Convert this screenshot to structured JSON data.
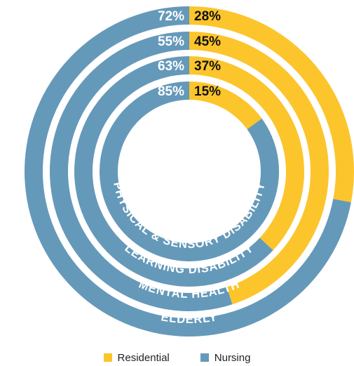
{
  "chart_data": {
    "type": "donut",
    "colors": {
      "residential": "#FCC52C",
      "nursing": "#6599BA"
    },
    "rings": [
      {
        "label": "ELDERLY",
        "residential": 28,
        "nursing": 72,
        "residential_label": "28%",
        "nursing_label": "72%"
      },
      {
        "label": "MENTAL HEALTH",
        "residential": 45,
        "nursing": 55,
        "residential_label": "45%",
        "nursing_label": "55%"
      },
      {
        "label": "LEARNING DISABILITY",
        "residential": 37,
        "nursing": 63,
        "residential_label": "37%",
        "nursing_label": "63%"
      },
      {
        "label": "PHYSICAL & SENSORY DISABILITY",
        "residential": 15,
        "nursing": 85,
        "residential_label": "15%",
        "nursing_label": "85%"
      }
    ],
    "legend": [
      {
        "name": "Residential",
        "color": "#FCC52C"
      },
      {
        "name": "Nursing",
        "color": "#6599BA"
      }
    ]
  }
}
